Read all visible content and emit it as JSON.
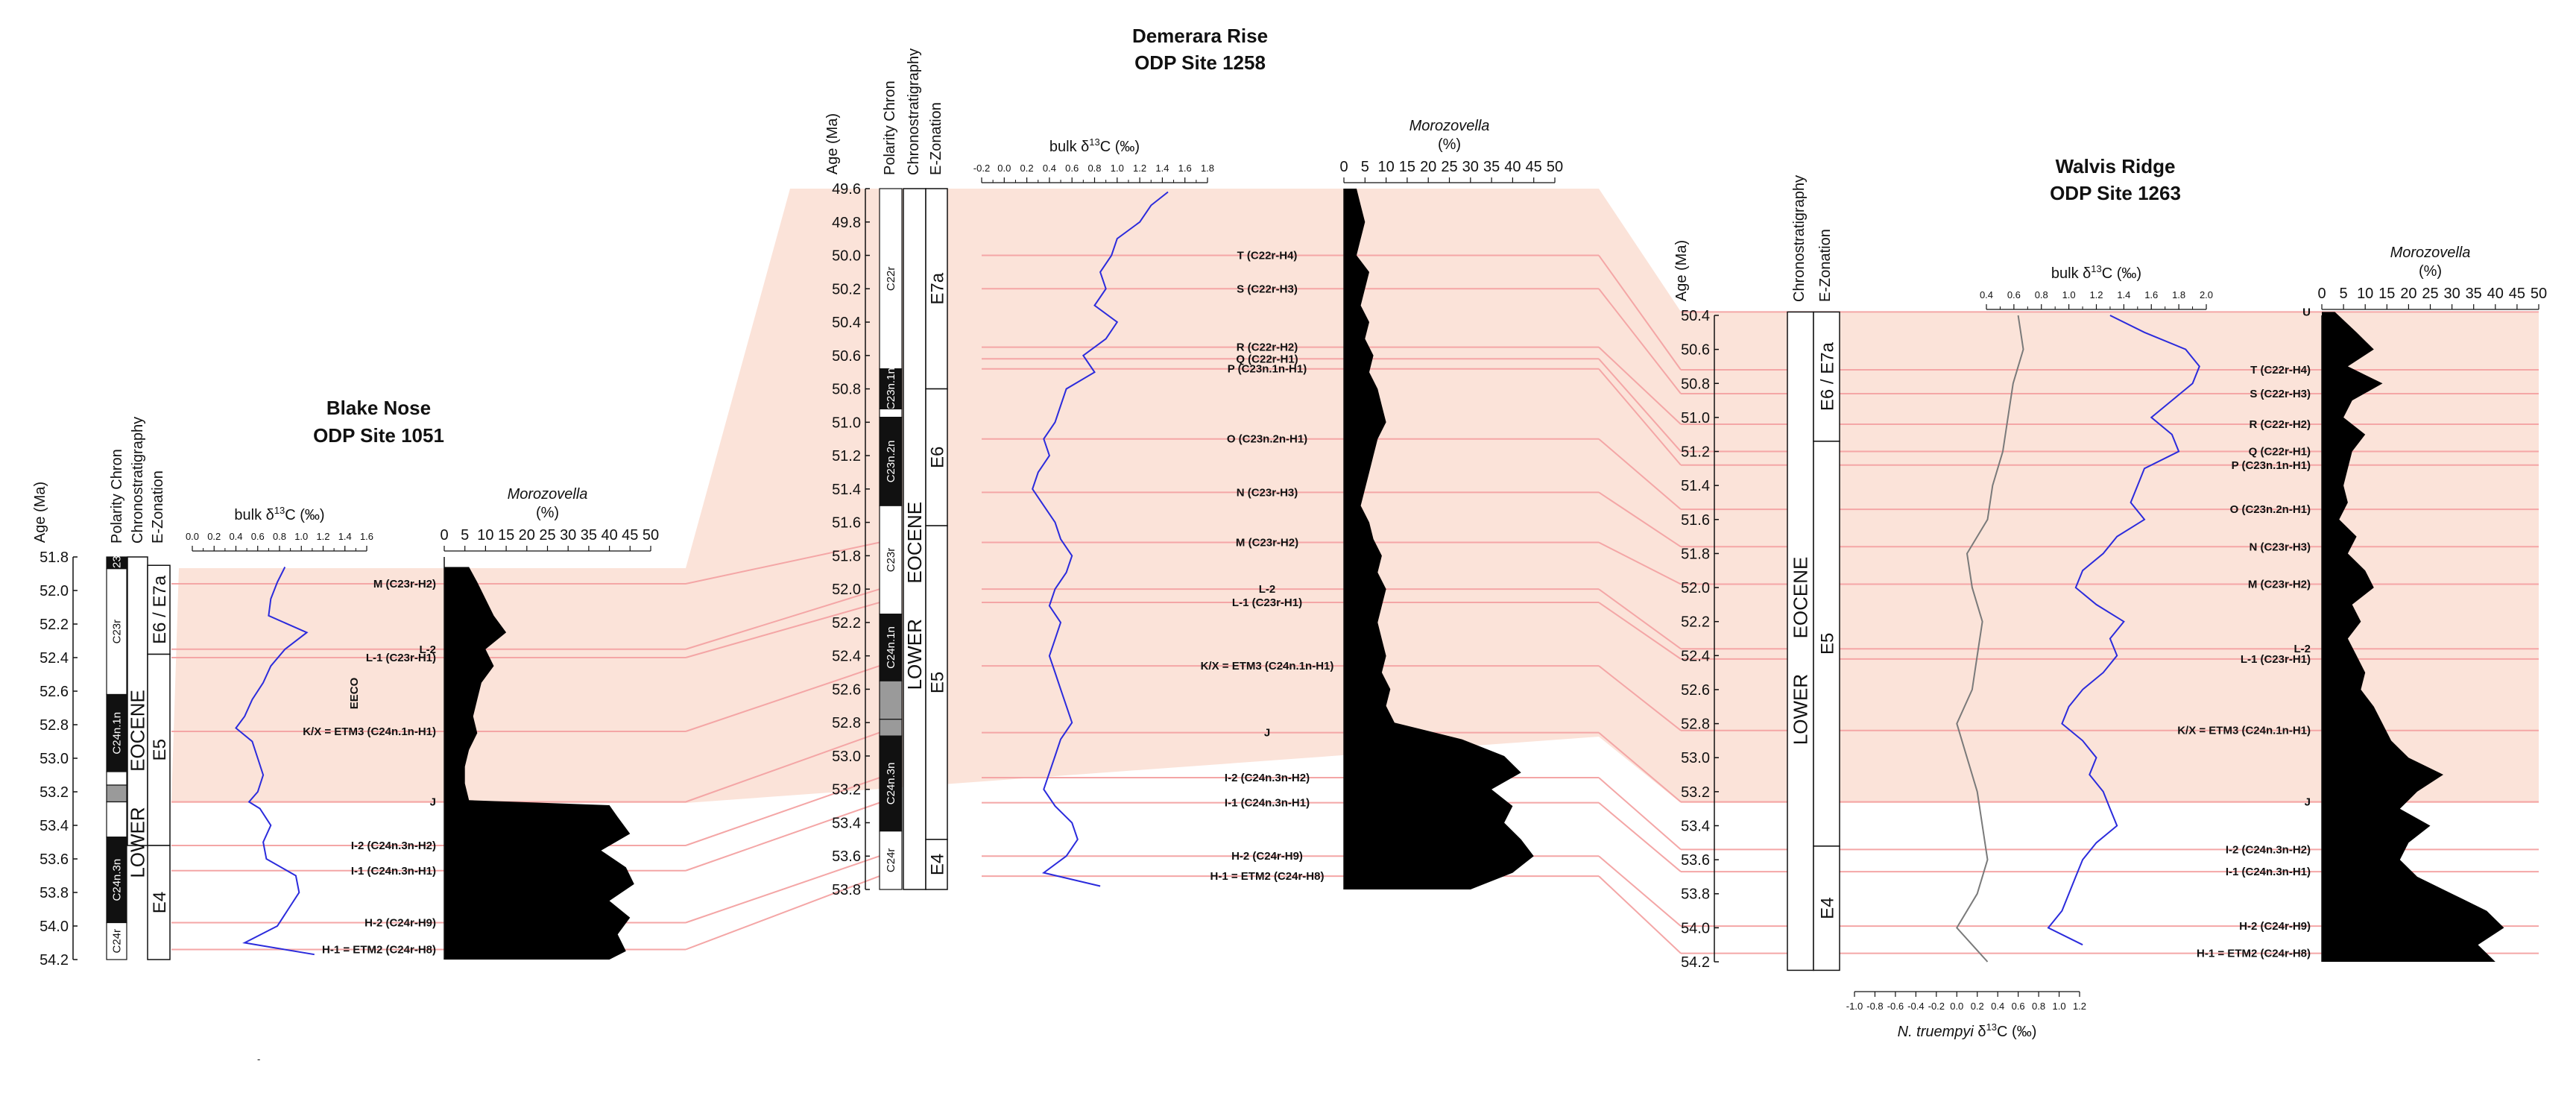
{
  "chart_data": [
    {
      "type": "line",
      "site_name": "Blake Nose",
      "site_label": "ODP Site 1051",
      "age_axis": {
        "label": "Age (Ma)",
        "range": [
          51.8,
          54.2
        ],
        "ticks": [
          51.8,
          52.0,
          52.2,
          52.4,
          52.6,
          52.8,
          53.0,
          53.2,
          53.4,
          53.6,
          53.8,
          54.0,
          54.2
        ]
      },
      "column_headers": [
        "Polarity Chron",
        "Chronostratigraphy",
        "E-Zonation"
      ],
      "chrons": [
        {
          "label": "C23n",
          "top": 51.8,
          "bottom": 51.87,
          "normal": true
        },
        {
          "label": "C23r",
          "top": 51.87,
          "bottom": 52.62,
          "normal": false
        },
        {
          "label": "C24n.1n",
          "top": 52.62,
          "bottom": 53.08,
          "normal": true
        },
        {
          "label": "",
          "top": 53.08,
          "bottom": 53.16,
          "normal": false
        },
        {
          "label": "",
          "top": 53.16,
          "bottom": 53.26,
          "normal": "grey"
        },
        {
          "label": "",
          "top": 53.26,
          "bottom": 53.47,
          "normal": false
        },
        {
          "label": "C24n.3n",
          "top": 53.47,
          "bottom": 53.98,
          "normal": true
        },
        {
          "label": "C24r",
          "top": 53.98,
          "bottom": 54.2,
          "normal": false
        }
      ],
      "stratigraphy": [
        "EOCENE",
        "LOWER"
      ],
      "zones": [
        {
          "label": "E6 / E7a",
          "top": 51.85,
          "bottom": 52.38
        },
        {
          "label": "E5",
          "top": 52.38,
          "bottom": 53.52
        },
        {
          "label": "E4",
          "top": 53.52,
          "bottom": 54.2
        }
      ],
      "d13c_axis": {
        "label": "bulk δ13C (‰)",
        "ticks": [
          "0.0",
          "0.2",
          "0.4",
          "0.6",
          "0.8",
          "1.0",
          "1.2",
          "1.4",
          "1.6"
        ],
        "range": [
          0.0,
          1.6
        ]
      },
      "d13c_series": {
        "age": [
          51.86,
          51.95,
          52.05,
          52.15,
          52.25,
          52.35,
          52.45,
          52.55,
          52.65,
          52.75,
          52.82,
          52.9,
          53.0,
          53.1,
          53.2,
          53.26,
          53.3,
          53.4,
          53.5,
          53.6,
          53.7,
          53.8,
          53.9,
          54.0,
          54.1,
          54.17
        ],
        "value": [
          0.85,
          0.78,
          0.72,
          0.7,
          1.05,
          0.85,
          0.72,
          0.65,
          0.55,
          0.48,
          0.4,
          0.55,
          0.6,
          0.65,
          0.6,
          0.52,
          0.62,
          0.72,
          0.65,
          0.68,
          0.95,
          0.98,
          0.88,
          0.78,
          0.48,
          1.12
        ]
      },
      "morozovella_axis": {
        "label": "Morozovella",
        "unit": "(%)",
        "ticks": [
          "0",
          "5",
          "10",
          "15",
          "20",
          "25",
          "30",
          "35",
          "40",
          "45",
          "50"
        ],
        "range": [
          0,
          50
        ]
      },
      "morozovella_series": {
        "age": [
          51.86,
          51.95,
          52.05,
          52.15,
          52.25,
          52.35,
          52.45,
          52.55,
          52.65,
          52.75,
          52.85,
          52.95,
          53.05,
          53.15,
          53.25,
          53.28,
          53.35,
          53.45,
          53.55,
          53.65,
          53.75,
          53.85,
          53.95,
          54.05,
          54.15,
          54.2
        ],
        "value": [
          6,
          8,
          10,
          12,
          15,
          10,
          12,
          9,
          8,
          7,
          8,
          6,
          5,
          5,
          6,
          40,
          42,
          45,
          38,
          44,
          46,
          40,
          45,
          42,
          44,
          40
        ]
      },
      "events": [
        {
          "label": "M (C23r-H2)",
          "age": 51.96
        },
        {
          "label": "L-2",
          "age": 52.35
        },
        {
          "label": "L-1 (C23r-H1)",
          "age": 52.4
        },
        {
          "label": "K/X = ETM3 (C24n.1n-H1)",
          "age": 52.84
        },
        {
          "label": "J",
          "age": 53.26
        },
        {
          "label": "I-2 (C24n.3n-H2)",
          "age": 53.52
        },
        {
          "label": "I-1 (C24n.3n-H1)",
          "age": 53.67
        },
        {
          "label": "H-2 (C24r-H9)",
          "age": 53.98
        },
        {
          "label": "H-1 = ETM2 (C24r-H8)",
          "age": 54.14
        }
      ],
      "annotation": "EECO"
    },
    {
      "type": "line",
      "site_name": "Demerara Rise",
      "site_label": "ODP Site 1258",
      "age_axis": {
        "label": "Age (Ma)",
        "range": [
          49.6,
          53.8
        ],
        "ticks": [
          49.6,
          49.8,
          50.0,
          50.2,
          50.4,
          50.6,
          50.8,
          51.0,
          51.2,
          51.4,
          51.6,
          51.8,
          52.0,
          52.2,
          52.4,
          52.6,
          52.8,
          53.0,
          53.2,
          53.4,
          53.6,
          53.8
        ]
      },
      "column_headers": [
        "Polarity Chron",
        "Chronostratigraphy",
        "E-Zonation"
      ],
      "chrons": [
        {
          "label": "C22r",
          "top": 49.6,
          "bottom": 50.68,
          "normal": false
        },
        {
          "label": "C23n.1n",
          "top": 50.68,
          "bottom": 50.92,
          "normal": true
        },
        {
          "label": "",
          "top": 50.92,
          "bottom": 50.97,
          "normal": false
        },
        {
          "label": "C23n.2n",
          "top": 50.97,
          "bottom": 51.5,
          "normal": true
        },
        {
          "label": "C23r",
          "top": 51.5,
          "bottom": 52.15,
          "normal": false
        },
        {
          "label": "C24n.1n",
          "top": 52.15,
          "bottom": 52.55,
          "normal": true
        },
        {
          "label": "",
          "top": 52.55,
          "bottom": 52.78,
          "normal": "grey"
        },
        {
          "label": "",
          "top": 52.78,
          "bottom": 52.88,
          "normal": "grey"
        },
        {
          "label": "C24n.3n",
          "top": 52.88,
          "bottom": 53.45,
          "normal": true
        },
        {
          "label": "C24r",
          "top": 53.45,
          "bottom": 53.8,
          "normal": false
        }
      ],
      "stratigraphy": [
        "EOCENE",
        "LOWER"
      ],
      "zones": [
        {
          "label": "E7a",
          "top": 49.6,
          "bottom": 50.8
        },
        {
          "label": "E6",
          "top": 50.8,
          "bottom": 51.62
        },
        {
          "label": "E5",
          "top": 51.62,
          "bottom": 53.5
        },
        {
          "label": "E4",
          "top": 53.5,
          "bottom": 53.8
        }
      ],
      "d13c_axis": {
        "label": "bulk δ13C (‰)",
        "ticks": [
          "-0.2",
          "0.0",
          "0.2",
          "0.4",
          "0.6",
          "0.8",
          "1.0",
          "1.2",
          "1.4",
          "1.6",
          "1.8"
        ],
        "range": [
          -0.2,
          1.8
        ]
      },
      "d13c_series": {
        "age": [
          49.62,
          49.7,
          49.8,
          49.9,
          50.0,
          50.1,
          50.2,
          50.3,
          50.4,
          50.5,
          50.6,
          50.7,
          50.8,
          50.9,
          51.0,
          51.1,
          51.2,
          51.3,
          51.4,
          51.5,
          51.6,
          51.7,
          51.8,
          51.9,
          52.0,
          52.1,
          52.2,
          52.3,
          52.4,
          52.5,
          52.6,
          52.7,
          52.8,
          52.9,
          53.0,
          53.1,
          53.2,
          53.3,
          53.4,
          53.5,
          53.6,
          53.7,
          53.78
        ],
        "value": [
          1.45,
          1.3,
          1.2,
          1.0,
          0.95,
          0.85,
          0.9,
          0.8,
          1.0,
          0.9,
          0.7,
          0.8,
          0.55,
          0.5,
          0.45,
          0.35,
          0.4,
          0.3,
          0.25,
          0.35,
          0.45,
          0.5,
          0.6,
          0.55,
          0.45,
          0.4,
          0.5,
          0.45,
          0.4,
          0.45,
          0.5,
          0.55,
          0.6,
          0.5,
          0.45,
          0.4,
          0.35,
          0.45,
          0.6,
          0.65,
          0.55,
          0.35,
          0.85
        ]
      },
      "morozovella_axis": {
        "label": "Morozovella",
        "unit": "(%)",
        "ticks": [
          "0",
          "5",
          "10",
          "15",
          "20",
          "25",
          "30",
          "35",
          "40",
          "45",
          "50"
        ],
        "range": [
          0,
          50
        ]
      },
      "morozovella_series": {
        "age": [
          49.6,
          49.7,
          49.8,
          49.9,
          50.0,
          50.1,
          50.2,
          50.3,
          50.4,
          50.5,
          50.6,
          50.7,
          50.8,
          50.9,
          51.0,
          51.1,
          51.2,
          51.3,
          51.4,
          51.5,
          51.6,
          51.7,
          51.8,
          51.9,
          52.0,
          52.1,
          52.2,
          52.3,
          52.4,
          52.5,
          52.6,
          52.7,
          52.8,
          52.9,
          53.0,
          53.1,
          53.2,
          53.3,
          53.4,
          53.5,
          53.6,
          53.7,
          53.8
        ],
        "value": [
          3,
          4,
          5,
          4,
          3,
          6,
          5,
          4,
          6,
          5,
          7,
          6,
          8,
          9,
          10,
          8,
          7,
          6,
          5,
          4,
          6,
          7,
          9,
          8,
          10,
          9,
          8,
          9,
          10,
          9,
          11,
          10,
          12,
          28,
          38,
          42,
          35,
          40,
          38,
          42,
          45,
          40,
          30
        ]
      },
      "events": [
        {
          "label": "T (C22r-H4)",
          "age": 50.0
        },
        {
          "label": "S (C22r-H3)",
          "age": 50.2
        },
        {
          "label": "R (C22r-H2)",
          "age": 50.55
        },
        {
          "label": "Q (C22r-H1)",
          "age": 50.62
        },
        {
          "label": "P (C23n.1n-H1)",
          "age": 50.68
        },
        {
          "label": "O (C23n.2n-H1)",
          "age": 51.1
        },
        {
          "label": "N (C23r-H3)",
          "age": 51.42
        },
        {
          "label": "M (C23r-H2)",
          "age": 51.72
        },
        {
          "label": "L-2",
          "age": 52.0
        },
        {
          "label": "L-1 (C23r-H1)",
          "age": 52.08
        },
        {
          "label": "K/X = ETM3 (C24n.1n-H1)",
          "age": 52.46
        },
        {
          "label": "J",
          "age": 52.86
        },
        {
          "label": "I-2 (C24n.3n-H2)",
          "age": 53.13
        },
        {
          "label": "I-1 (C24n.3n-H1)",
          "age": 53.28
        },
        {
          "label": "H-2 (C24r-H9)",
          "age": 53.6
        },
        {
          "label": "H-1 = ETM2 (C24r-H8)",
          "age": 53.72
        }
      ]
    },
    {
      "type": "line",
      "site_name": "Walvis Ridge",
      "site_label": "ODP Site 1263",
      "age_axis": {
        "label": "Age (Ma)",
        "range": [
          50.4,
          54.2
        ],
        "ticks": [
          50.4,
          50.6,
          50.8,
          51.0,
          51.2,
          51.4,
          51.6,
          51.8,
          52.0,
          52.2,
          52.4,
          52.6,
          52.8,
          53.0,
          53.2,
          53.4,
          53.6,
          53.8,
          54.0,
          54.2
        ]
      },
      "column_headers": [
        "Chronostratigraphy",
        "E-Zonation"
      ],
      "stratigraphy": [
        "EOCENE",
        "LOWER"
      ],
      "zones": [
        {
          "label": "E6 / E7a",
          "top": 50.38,
          "bottom": 51.14
        },
        {
          "label": "E5",
          "top": 51.14,
          "bottom": 53.52
        },
        {
          "label": "E4",
          "top": 53.52,
          "bottom": 54.25
        }
      ],
      "d13c_axis": {
        "label": "bulk δ13C (‰)",
        "ticks": [
          "0.4",
          "0.6",
          "0.8",
          "1.0",
          "1.2",
          "1.4",
          "1.6",
          "1.8",
          "2.0"
        ],
        "range": [
          0.4,
          2.0
        ]
      },
      "d13c_series": {
        "age": [
          50.4,
          50.5,
          50.6,
          50.7,
          50.8,
          50.9,
          51.0,
          51.1,
          51.2,
          51.3,
          51.4,
          51.5,
          51.6,
          51.7,
          51.8,
          51.9,
          52.0,
          52.1,
          52.2,
          52.3,
          52.4,
          52.5,
          52.6,
          52.7,
          52.8,
          52.9,
          53.0,
          53.1,
          53.2,
          53.3,
          53.4,
          53.5,
          53.6,
          53.7,
          53.8,
          53.9,
          54.0,
          54.1
        ],
        "value": [
          1.3,
          1.55,
          1.85,
          1.95,
          1.9,
          1.75,
          1.6,
          1.75,
          1.8,
          1.55,
          1.5,
          1.45,
          1.55,
          1.35,
          1.25,
          1.1,
          1.05,
          1.2,
          1.4,
          1.3,
          1.35,
          1.25,
          1.1,
          1.0,
          0.95,
          1.1,
          1.2,
          1.15,
          1.25,
          1.3,
          1.35,
          1.2,
          1.1,
          1.05,
          1.0,
          0.95,
          0.85,
          1.1
        ]
      },
      "truempyi_axis": {
        "label": "N. truempyi δ13C (‰)",
        "ticks": [
          "-1.0",
          "-0.8",
          "-0.6",
          "-0.4",
          "-0.2",
          "0.0",
          "0.2",
          "0.4",
          "0.6",
          "0.8",
          "1.0",
          "1.2"
        ],
        "range": [
          -1.0,
          1.2
        ]
      },
      "truempyi_series": {
        "age": [
          50.4,
          50.6,
          50.8,
          51.0,
          51.2,
          51.4,
          51.6,
          51.8,
          52.0,
          52.2,
          52.4,
          52.6,
          52.8,
          53.0,
          53.2,
          53.4,
          53.6,
          53.8,
          54.0,
          54.2
        ],
        "value": [
          0.6,
          0.65,
          0.55,
          0.5,
          0.45,
          0.35,
          0.3,
          0.1,
          0.15,
          0.25,
          0.2,
          0.15,
          0.0,
          0.1,
          0.2,
          0.25,
          0.3,
          0.2,
          0.0,
          0.3
        ]
      },
      "morozovella_axis": {
        "label": "Morozovella",
        "unit": "(%)",
        "ticks": [
          "0",
          "5",
          "10",
          "15",
          "20",
          "25",
          "30",
          "35",
          "40",
          "45",
          "50"
        ],
        "range": [
          0,
          50
        ]
      },
      "morozovella_series": {
        "age": [
          50.38,
          50.5,
          50.6,
          50.7,
          50.8,
          50.9,
          51.0,
          51.1,
          51.2,
          51.3,
          51.4,
          51.5,
          51.6,
          51.7,
          51.8,
          51.9,
          52.0,
          52.1,
          52.2,
          52.3,
          52.4,
          52.5,
          52.6,
          52.7,
          52.8,
          52.9,
          53.0,
          53.1,
          53.2,
          53.3,
          53.4,
          53.5,
          53.6,
          53.7,
          53.8,
          53.9,
          54.0,
          54.1,
          54.2
        ],
        "value": [
          3,
          8,
          12,
          6,
          14,
          7,
          5,
          10,
          7,
          6,
          5,
          6,
          4,
          8,
          6,
          10,
          12,
          7,
          9,
          6,
          8,
          10,
          9,
          12,
          14,
          16,
          20,
          28,
          22,
          18,
          25,
          20,
          18,
          22,
          30,
          38,
          42,
          36,
          40
        ]
      },
      "events": [
        {
          "label": "U",
          "age": 50.38
        },
        {
          "label": "T (C22r-H4)",
          "age": 50.72
        },
        {
          "label": "S (C22r-H3)",
          "age": 50.86
        },
        {
          "label": "R (C22r-H2)",
          "age": 51.04
        },
        {
          "label": "Q (C22r-H1)",
          "age": 51.2
        },
        {
          "label": "P (C23n.1n-H1)",
          "age": 51.28
        },
        {
          "label": "O (C23n.2n-H1)",
          "age": 51.54
        },
        {
          "label": "N (C23r-H3)",
          "age": 51.76
        },
        {
          "label": "M (C23r-H2)",
          "age": 51.98
        },
        {
          "label": "L-2",
          "age": 52.36
        },
        {
          "label": "L-1 (C23r-H1)",
          "age": 52.42
        },
        {
          "label": "K/X = ETM3 (C24n.1n-H1)",
          "age": 52.84
        },
        {
          "label": "J",
          "age": 53.26
        },
        {
          "label": "I-2 (C24n.3n-H2)",
          "age": 53.54
        },
        {
          "label": "I-1 (C24n.3n-H1)",
          "age": 53.67
        },
        {
          "label": "H-2 (C24r-H9)",
          "age": 53.99
        },
        {
          "label": "H-1 = ETM2 (C24r-H8)",
          "age": 54.15
        }
      ]
    }
  ],
  "colors": {
    "d13c_line": "#2b2bdc",
    "truempyi_line": "#7a7a7a",
    "morozovella_fill": "#000000",
    "highlight_fill": "#fbe3d9",
    "event_line": "#f4a6a6"
  }
}
